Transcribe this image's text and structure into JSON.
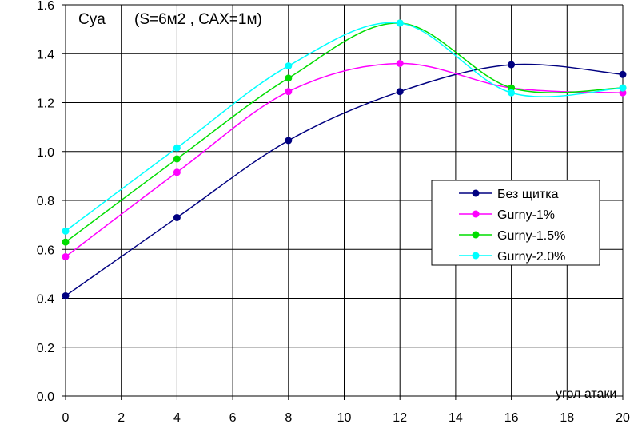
{
  "chart_data": {
    "type": "line",
    "title": "Cya",
    "subtitle": "(S=6м2 , САХ=1м)",
    "xlabel": "угол атаки",
    "ylabel": "",
    "xlim": [
      0,
      20
    ],
    "ylim": [
      0,
      1.6
    ],
    "xticks": [
      0,
      2,
      4,
      6,
      8,
      10,
      12,
      14,
      16,
      18,
      20
    ],
    "yticks": [
      "0.0",
      "0.2",
      "0.4",
      "0.6",
      "0.8",
      "1.0",
      "1.2",
      "1.4",
      "1.6"
    ],
    "grid": true,
    "legend_position": "right",
    "series": [
      {
        "name": "Без щитка",
        "color": "#000080",
        "x": [
          0,
          4,
          8,
          12,
          16,
          20
        ],
        "values": [
          0.41,
          0.73,
          1.045,
          1.245,
          1.355,
          1.315
        ]
      },
      {
        "name": "Gurny-1%",
        "color": "#ff00ff",
        "x": [
          0,
          4,
          8,
          12,
          16,
          20
        ],
        "values": [
          0.57,
          0.915,
          1.245,
          1.36,
          1.26,
          1.24
        ]
      },
      {
        "name": "Gurny-1.5%",
        "color": "#00dd00",
        "x": [
          0,
          4,
          8,
          12,
          16,
          20
        ],
        "values": [
          0.63,
          0.97,
          1.3,
          1.525,
          1.26,
          1.26
        ]
      },
      {
        "name": "Gurny-2.0%",
        "color": "#00ffff",
        "x": [
          0,
          4,
          8,
          12,
          16,
          20
        ],
        "values": [
          0.675,
          1.015,
          1.35,
          1.525,
          1.24,
          1.26
        ]
      }
    ]
  }
}
